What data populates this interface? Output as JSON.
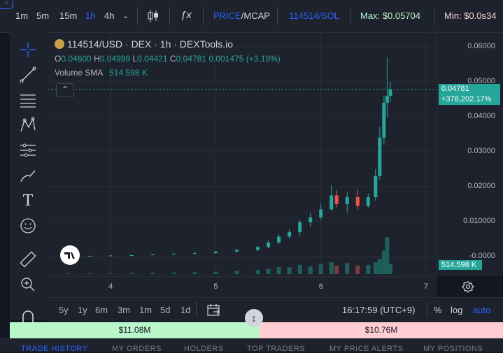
{
  "topbar": {
    "intervals": [
      "1m",
      "5m",
      "15m",
      "1h",
      "4h"
    ],
    "active_interval": "1h",
    "price_label": "PRICE",
    "mcap_label": "MCAP",
    "pair_label": "114514/SOL",
    "max_label": "Max: $0.05704",
    "min_label": "Min: $0.0s34"
  },
  "legend": {
    "symbol": "114514/USD · DEX · 1h · DEXTools.io",
    "o_key": "O",
    "o_val": "0.04600",
    "h_key": "H",
    "h_val": "0.04999",
    "l_key": "L",
    "l_val": "0.04421",
    "c_key": "C",
    "c_val": "0.04781",
    "change": "0.001475 (+3.19%)",
    "volume_label": "Volume SMA",
    "volume_val": "514.598 K"
  },
  "price_axis": {
    "ticks": [
      "0.06000",
      "0.05000",
      "0.04000",
      "0.03000",
      "0.02000",
      "0.010000",
      "-0.0000"
    ],
    "last_price": "0.04781",
    "last_change": "+378,202.17%",
    "volume_badge": "514.598 K"
  },
  "time_axis": {
    "ticks": [
      "4",
      "5",
      "6",
      "7"
    ]
  },
  "bottom": {
    "ranges": [
      "5y",
      "1y",
      "6m",
      "3m",
      "1m",
      "5d",
      "1d"
    ],
    "clock": "16:17:59 (UTC+9)",
    "percent": "%",
    "log": "log",
    "auto": "auto"
  },
  "volume_strip": {
    "buy": "$11.08M",
    "sell": "$10.76M"
  },
  "tabs": [
    "TRADE HISTORY",
    "MY ORDERS",
    "HOLDERS",
    "TOP TRADERS",
    "MY PRICE ALERTS",
    "MY POSITIONS"
  ],
  "colors": {
    "up": "#26a69a",
    "down": "#ef5350",
    "accent": "#2962ff",
    "buy_strip": "#b9f6ca",
    "sell_strip": "#ffcdd2"
  },
  "chart_data": {
    "type": "candlestick",
    "x_ticks": [
      "4",
      "5",
      "6",
      "7"
    ],
    "y_ticks": [
      0,
      0.01,
      0.02,
      0.03,
      0.04,
      0.05,
      0.06
    ],
    "ylim": [
      0,
      0.062
    ],
    "xlim": [
      3.4,
      7.1
    ],
    "candles": [
      {
        "x": 3.6,
        "o": 0.0001,
        "h": 0.0002,
        "l": 0.0,
        "c": 0.0001
      },
      {
        "x": 3.8,
        "o": 0.0001,
        "h": 0.0003,
        "l": 0.0,
        "c": 0.0002
      },
      {
        "x": 4.0,
        "o": 0.0002,
        "h": 0.0004,
        "l": 0.0001,
        "c": 0.0003
      },
      {
        "x": 4.2,
        "o": 0.0003,
        "h": 0.0005,
        "l": 0.0002,
        "c": 0.0004
      },
      {
        "x": 4.4,
        "o": 0.0004,
        "h": 0.0007,
        "l": 0.0003,
        "c": 0.0006
      },
      {
        "x": 4.6,
        "o": 0.0006,
        "h": 0.0009,
        "l": 0.0004,
        "c": 0.0008
      },
      {
        "x": 4.8,
        "o": 0.0008,
        "h": 0.0012,
        "l": 0.0006,
        "c": 0.001
      },
      {
        "x": 5.0,
        "o": 0.001,
        "h": 0.0016,
        "l": 0.0008,
        "c": 0.0014
      },
      {
        "x": 5.2,
        "o": 0.0014,
        "h": 0.0021,
        "l": 0.0012,
        "c": 0.0019
      },
      {
        "x": 5.4,
        "o": 0.0019,
        "h": 0.003,
        "l": 0.0016,
        "c": 0.0027
      },
      {
        "x": 5.5,
        "o": 0.0027,
        "h": 0.0045,
        "l": 0.0024,
        "c": 0.004
      },
      {
        "x": 5.6,
        "o": 0.004,
        "h": 0.0063,
        "l": 0.0035,
        "c": 0.0057
      },
      {
        "x": 5.7,
        "o": 0.0057,
        "h": 0.0078,
        "l": 0.005,
        "c": 0.007
      },
      {
        "x": 5.8,
        "o": 0.007,
        "h": 0.0105,
        "l": 0.006,
        "c": 0.0098
      },
      {
        "x": 5.9,
        "o": 0.0098,
        "h": 0.0125,
        "l": 0.0085,
        "c": 0.0112
      },
      {
        "x": 6.0,
        "o": 0.0112,
        "h": 0.0152,
        "l": 0.0105,
        "c": 0.0135
      },
      {
        "x": 6.1,
        "o": 0.0135,
        "h": 0.0203,
        "l": 0.013,
        "c": 0.0175
      },
      {
        "x": 6.15,
        "o": 0.0175,
        "h": 0.019,
        "l": 0.014,
        "c": 0.015
      },
      {
        "x": 6.25,
        "o": 0.015,
        "h": 0.0185,
        "l": 0.0125,
        "c": 0.017
      },
      {
        "x": 6.35,
        "o": 0.017,
        "h": 0.0192,
        "l": 0.0135,
        "c": 0.0145
      },
      {
        "x": 6.45,
        "o": 0.0145,
        "h": 0.018,
        "l": 0.014,
        "c": 0.017
      },
      {
        "x": 6.52,
        "o": 0.017,
        "h": 0.025,
        "l": 0.016,
        "c": 0.023
      },
      {
        "x": 6.56,
        "o": 0.023,
        "h": 0.037,
        "l": 0.022,
        "c": 0.034
      },
      {
        "x": 6.6,
        "o": 0.034,
        "h": 0.046,
        "l": 0.032,
        "c": 0.044
      },
      {
        "x": 6.63,
        "o": 0.044,
        "h": 0.057,
        "l": 0.04,
        "c": 0.046
      },
      {
        "x": 6.66,
        "o": 0.046,
        "h": 0.05,
        "l": 0.0442,
        "c": 0.0478
      }
    ],
    "volume_ylim": [
      0,
      25
    ],
    "volume": [
      0.3,
      0.4,
      0.5,
      0.6,
      0.7,
      0.8,
      1.0,
      1.4,
      1.8,
      2.5,
      3.0,
      4.2,
      4.0,
      5.5,
      4.5,
      6.0,
      7.0,
      5.0,
      6.5,
      5.0,
      5.5,
      7.0,
      9.0,
      14.0,
      22.0,
      6.0
    ]
  }
}
